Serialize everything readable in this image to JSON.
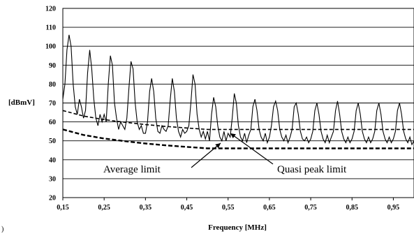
{
  "chart_data": {
    "type": "line",
    "title": "",
    "xlabel": "Frequency [MHz]",
    "ylabel": "[dBmV]",
    "xlim": [
      0.15,
      1.0
    ],
    "ylim": [
      20,
      120
    ],
    "grid": "horizontal",
    "x_ticks": [
      "0,15",
      "0,25",
      "0,35",
      "0,45",
      "0,55",
      "0,65",
      "0,75",
      "0,85",
      "0,95"
    ],
    "y_ticks": [
      "20",
      "30",
      "40",
      "50",
      "60",
      "70",
      "80",
      "90",
      "100",
      "110",
      "120"
    ],
    "annotations": [
      {
        "text": "Average limit",
        "points_to": "average_limit"
      },
      {
        "text": "Quasi peak limit",
        "points_to": "quasi_peak_limit"
      }
    ],
    "series": [
      {
        "style": "solid",
        "description_key": "measured_emission",
        "x": [
          0.15,
          0.155,
          0.16,
          0.165,
          0.17,
          0.175,
          0.18,
          0.185,
          0.19,
          0.195,
          0.2,
          0.205,
          0.21,
          0.215,
          0.22,
          0.225,
          0.23,
          0.235,
          0.24,
          0.245,
          0.25,
          0.255,
          0.26,
          0.265,
          0.27,
          0.275,
          0.28,
          0.285,
          0.29,
          0.295,
          0.3,
          0.305,
          0.31,
          0.315,
          0.32,
          0.325,
          0.33,
          0.335,
          0.34,
          0.345,
          0.35,
          0.355,
          0.36,
          0.365,
          0.37,
          0.375,
          0.38,
          0.385,
          0.39,
          0.395,
          0.4,
          0.405,
          0.41,
          0.415,
          0.42,
          0.425,
          0.43,
          0.435,
          0.44,
          0.445,
          0.45,
          0.455,
          0.46,
          0.465,
          0.47,
          0.475,
          0.48,
          0.485,
          0.49,
          0.495,
          0.5,
          0.505,
          0.51,
          0.515,
          0.52,
          0.525,
          0.53,
          0.535,
          0.54,
          0.545,
          0.55,
          0.555,
          0.56,
          0.565,
          0.57,
          0.575,
          0.58,
          0.585,
          0.59,
          0.595,
          0.6,
          0.605,
          0.61,
          0.615,
          0.62,
          0.625,
          0.63,
          0.635,
          0.64,
          0.645,
          0.65,
          0.655,
          0.66,
          0.665,
          0.67,
          0.675,
          0.68,
          0.685,
          0.69,
          0.695,
          0.7,
          0.705,
          0.71,
          0.715,
          0.72,
          0.725,
          0.73,
          0.735,
          0.74,
          0.745,
          0.75,
          0.755,
          0.76,
          0.765,
          0.77,
          0.775,
          0.78,
          0.785,
          0.79,
          0.795,
          0.8,
          0.805,
          0.81,
          0.815,
          0.82,
          0.825,
          0.83,
          0.835,
          0.84,
          0.845,
          0.85,
          0.855,
          0.86,
          0.865,
          0.87,
          0.875,
          0.88,
          0.885,
          0.89,
          0.895,
          0.9,
          0.905,
          0.91,
          0.915,
          0.92,
          0.925,
          0.93,
          0.935,
          0.94,
          0.945,
          0.95,
          0.955,
          0.96,
          0.965,
          0.97,
          0.975,
          0.98,
          0.985,
          0.99,
          0.995,
          1.0
        ],
        "values": [
          72,
          80,
          98,
          106,
          100,
          80,
          68,
          64,
          72,
          68,
          62,
          66,
          86,
          98,
          88,
          72,
          62,
          58,
          64,
          60,
          64,
          60,
          80,
          95,
          90,
          70,
          62,
          56,
          60,
          58,
          56,
          62,
          78,
          92,
          88,
          70,
          60,
          56,
          58,
          54,
          54,
          60,
          76,
          83,
          76,
          62,
          55,
          54,
          58,
          56,
          55,
          58,
          72,
          83,
          76,
          62,
          55,
          52,
          56,
          54,
          55,
          58,
          70,
          85,
          80,
          64,
          56,
          52,
          55,
          51,
          55,
          50,
          64,
          73,
          68,
          58,
          52,
          50,
          55,
          50,
          54,
          52,
          62,
          75,
          70,
          58,
          52,
          50,
          54,
          49,
          53,
          56,
          68,
          72,
          66,
          56,
          52,
          50,
          54,
          49,
          52,
          58,
          68,
          71,
          66,
          56,
          52,
          50,
          53,
          49,
          52,
          56,
          68,
          70,
          64,
          55,
          51,
          50,
          52,
          49,
          51,
          55,
          66,
          70,
          64,
          55,
          51,
          49,
          53,
          49,
          52,
          55,
          66,
          71,
          64,
          55,
          51,
          49,
          52,
          49,
          51,
          55,
          66,
          70,
          64,
          55,
          51,
          49,
          52,
          49,
          51,
          55,
          66,
          70,
          64,
          55,
          51,
          49,
          52,
          49,
          51,
          55,
          66,
          70,
          64,
          55,
          51,
          49,
          52,
          48,
          50
        ]
      },
      {
        "style": "dashed",
        "description_key": "quasi_peak_limit",
        "x": [
          0.15,
          0.2,
          0.25,
          0.3,
          0.35,
          0.4,
          0.45,
          0.5,
          0.55,
          0.6,
          0.65,
          0.7,
          0.75,
          0.8,
          0.85,
          0.9,
          0.95,
          1.0
        ],
        "values": [
          66,
          63.1,
          61.2,
          59.8,
          58.6,
          57.6,
          56.8,
          56,
          56,
          56,
          56,
          56,
          56,
          56,
          56,
          56,
          56,
          56
        ]
      },
      {
        "style": "dashed-bold",
        "description_key": "average_limit",
        "x": [
          0.15,
          0.2,
          0.25,
          0.3,
          0.35,
          0.4,
          0.45,
          0.5,
          0.55,
          0.6,
          0.65,
          0.7,
          0.75,
          0.8,
          0.85,
          0.9,
          0.95,
          1.0
        ],
        "values": [
          56,
          53.1,
          51.2,
          49.8,
          48.6,
          47.6,
          46.8,
          46,
          46,
          46,
          46,
          46,
          46,
          46,
          46,
          46,
          46,
          46
        ]
      }
    ]
  },
  "footer_mark": ")"
}
